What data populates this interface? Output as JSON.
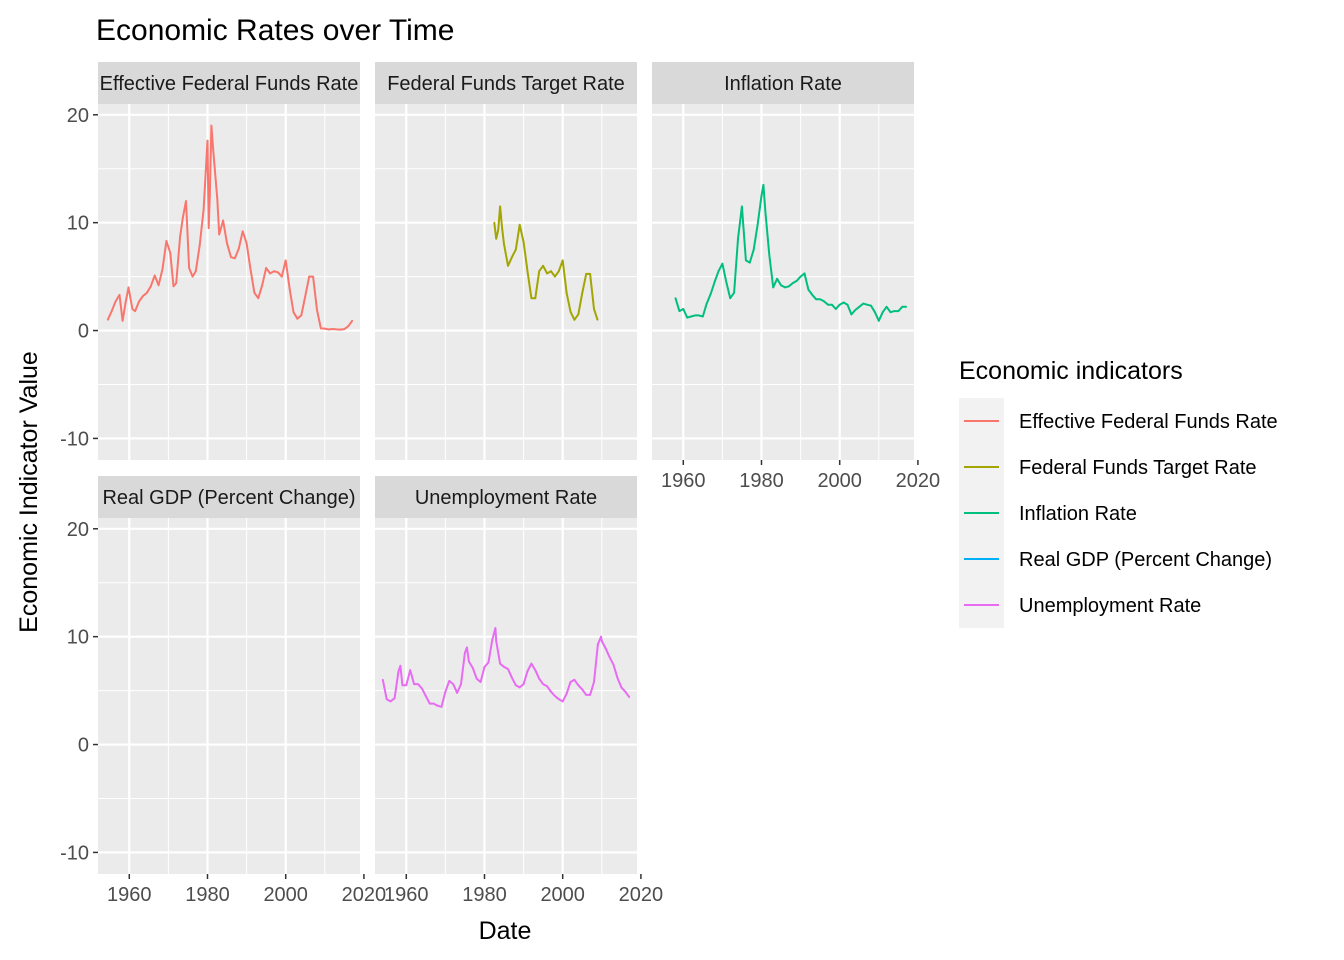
{
  "chart_data": {
    "type": "line",
    "title": "Economic Rates over Time",
    "xlabel": "Date",
    "ylabel": "Economic Indicator Value",
    "xlim": [
      1952,
      2019
    ],
    "ylim": [
      -12,
      21
    ],
    "x_ticks": [
      1960,
      1980,
      2000,
      2020
    ],
    "y_ticks": [
      -10,
      0,
      10,
      20
    ],
    "grid": true,
    "facet_layout": "3 columns x 2 rows, shared axes",
    "legend": {
      "title": "Economic indicators",
      "placement": "right"
    },
    "series": [
      {
        "name": "Effective Federal Funds Rate",
        "color": "#F8766D",
        "x": [
          1954.5,
          1955.5,
          1956.5,
          1957.5,
          1958.3,
          1959,
          1959.8,
          1960.8,
          1961.5,
          1962.5,
          1963.5,
          1964.5,
          1965.5,
          1966.5,
          1967.5,
          1968.5,
          1969.5,
          1970.5,
          1971.3,
          1972,
          1973,
          1973.7,
          1974.5,
          1975.3,
          1976.2,
          1977,
          1978,
          1979,
          1980,
          1980.3,
          1980.6,
          1981,
          1981.5,
          1982.5,
          1983,
          1984,
          1985,
          1986,
          1987,
          1988,
          1989,
          1990,
          1991,
          1992,
          1993,
          1994,
          1995,
          1996,
          1997,
          1998,
          1999,
          2000,
          2001,
          2002,
          2003,
          2004,
          2005,
          2006,
          2007,
          2008,
          2009,
          2010,
          2011,
          2012,
          2013,
          2014,
          2015,
          2016,
          2017
        ],
        "values": [
          1.0,
          1.8,
          2.7,
          3.3,
          0.9,
          2.5,
          4.0,
          2.0,
          1.8,
          2.7,
          3.2,
          3.5,
          4.1,
          5.1,
          4.2,
          5.7,
          8.3,
          7.2,
          4.1,
          4.4,
          8.7,
          10.5,
          12.0,
          5.8,
          5.0,
          5.5,
          7.9,
          11.2,
          17.6,
          9.5,
          12.5,
          19.0,
          16.5,
          12.2,
          8.9,
          10.2,
          8.1,
          6.8,
          6.7,
          7.6,
          9.2,
          8.1,
          5.7,
          3.5,
          3.0,
          4.2,
          5.8,
          5.3,
          5.5,
          5.4,
          5.0,
          6.5,
          3.9,
          1.7,
          1.1,
          1.4,
          3.2,
          5.0,
          5.0,
          1.9,
          0.2,
          0.18,
          0.1,
          0.14,
          0.11,
          0.09,
          0.13,
          0.4,
          0.9
        ]
      },
      {
        "name": "Federal Funds Target Rate",
        "color": "#A3A500",
        "x": [
          1982.5,
          1983,
          1983.5,
          1984,
          1984.5,
          1985,
          1986,
          1987,
          1988,
          1989,
          1990,
          1991,
          1992,
          1993,
          1994,
          1995,
          1996,
          1997,
          1998,
          1999,
          2000,
          2001,
          2002,
          2003,
          2004,
          2005,
          2006,
          2007,
          2008,
          2008.9
        ],
        "values": [
          10.0,
          8.5,
          9.3,
          11.5,
          9.5,
          8.0,
          6.0,
          6.8,
          7.5,
          9.8,
          8.2,
          5.5,
          3.0,
          3.0,
          5.5,
          6.0,
          5.3,
          5.5,
          5.0,
          5.5,
          6.5,
          3.5,
          1.75,
          1.0,
          1.5,
          3.5,
          5.25,
          5.25,
          2.0,
          1.0
        ]
      },
      {
        "name": "Inflation Rate",
        "color": "#00BF7D",
        "x": [
          1958,
          1959,
          1960,
          1961,
          1962,
          1963,
          1964,
          1965,
          1966,
          1967,
          1968,
          1969,
          1970,
          1971,
          1972,
          1973,
          1974,
          1975,
          1976,
          1977,
          1978,
          1979,
          1980,
          1980.5,
          1981,
          1982,
          1983,
          1984,
          1985,
          1986,
          1987,
          1988,
          1989,
          1990,
          1991,
          1992,
          1993,
          1994,
          1995,
          1996,
          1997,
          1998,
          1999,
          2000,
          2001,
          2002,
          2003,
          2004,
          2005,
          2006,
          2007,
          2008,
          2009,
          2010,
          2011,
          2012,
          2013,
          2014,
          2015,
          2016,
          2017
        ],
        "values": [
          3.0,
          1.8,
          2.0,
          1.2,
          1.3,
          1.4,
          1.4,
          1.3,
          2.5,
          3.4,
          4.5,
          5.5,
          6.2,
          4.5,
          3.0,
          3.5,
          8.5,
          11.5,
          6.5,
          6.3,
          7.5,
          9.8,
          12.5,
          13.5,
          11.0,
          7.0,
          4.0,
          4.8,
          4.2,
          4.0,
          4.1,
          4.4,
          4.6,
          5.0,
          5.3,
          3.8,
          3.3,
          2.9,
          2.9,
          2.7,
          2.4,
          2.4,
          2.0,
          2.4,
          2.6,
          2.4,
          1.5,
          1.9,
          2.2,
          2.5,
          2.4,
          2.3,
          1.7,
          0.9,
          1.7,
          2.2,
          1.7,
          1.8,
          1.8,
          2.2,
          2.2
        ]
      },
      {
        "name": "Real GDP (Percent Change)",
        "color": "#00B0F6",
        "x": [],
        "values": []
      },
      {
        "name": "Unemployment Rate",
        "color": "#E76BF3",
        "x": [
          1954,
          1955,
          1956,
          1957,
          1958,
          1958.5,
          1959,
          1960,
          1961,
          1962,
          1963,
          1964,
          1965,
          1966,
          1967,
          1968,
          1969,
          1970,
          1971,
          1972,
          1973,
          1974,
          1975,
          1975.5,
          1976,
          1977,
          1978,
          1979,
          1980,
          1981,
          1982,
          1982.8,
          1983,
          1984,
          1985,
          1986,
          1987,
          1988,
          1989,
          1990,
          1991,
          1992,
          1993,
          1994,
          1995,
          1996,
          1997,
          1998,
          1999,
          2000,
          2001,
          2002,
          2003,
          2004,
          2005,
          2006,
          2007,
          2008,
          2009,
          2009.8,
          2010,
          2011,
          2012,
          2013,
          2014,
          2015,
          2016,
          2017
        ],
        "values": [
          6.0,
          4.2,
          4.0,
          4.3,
          6.8,
          7.3,
          5.5,
          5.5,
          6.9,
          5.6,
          5.6,
          5.2,
          4.5,
          3.8,
          3.8,
          3.6,
          3.5,
          4.9,
          5.9,
          5.6,
          4.8,
          5.6,
          8.5,
          9.0,
          7.7,
          7.1,
          6.1,
          5.8,
          7.2,
          7.6,
          9.7,
          10.8,
          9.6,
          7.5,
          7.2,
          7.0,
          6.2,
          5.5,
          5.3,
          5.6,
          6.8,
          7.5,
          6.9,
          6.1,
          5.6,
          5.4,
          4.9,
          4.5,
          4.2,
          4.0,
          4.7,
          5.8,
          6.0,
          5.5,
          5.1,
          4.6,
          4.6,
          5.8,
          9.3,
          10.0,
          9.6,
          8.9,
          8.1,
          7.4,
          6.2,
          5.3,
          4.9,
          4.4
        ]
      }
    ]
  }
}
